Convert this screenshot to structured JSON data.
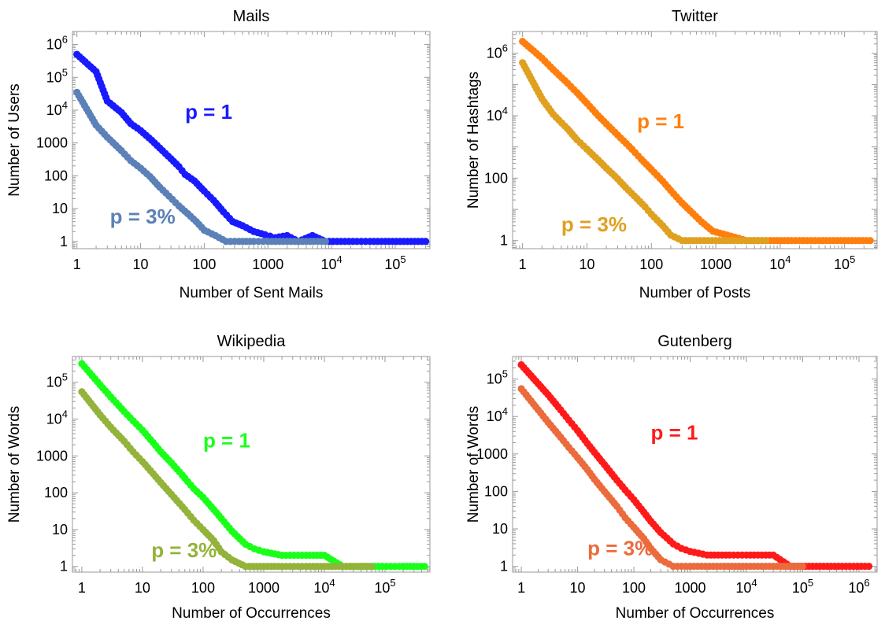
{
  "chart_data": [
    {
      "type": "scatter",
      "title": "Mails",
      "xlabel": "Number of Sent Mails",
      "ylabel": "Number of Users",
      "xscale": "log",
      "yscale": "log",
      "xlim": [
        0.85,
        350000
      ],
      "ylim": [
        0.6,
        2500000
      ],
      "xticks": [
        {
          "v": 1,
          "label": "1"
        },
        {
          "v": 10,
          "label": "10"
        },
        {
          "v": 100,
          "label": "100"
        },
        {
          "v": 1000,
          "label": "1000"
        },
        {
          "v": 10000,
          "m": "10",
          "e": "4"
        },
        {
          "v": 100000,
          "m": "10",
          "e": "5"
        }
      ],
      "yticks": [
        {
          "v": 1,
          "label": "1"
        },
        {
          "v": 10,
          "label": "10"
        },
        {
          "v": 100,
          "label": "100"
        },
        {
          "v": 1000,
          "label": "1000"
        },
        {
          "v": 10000,
          "m": "10",
          "e": "4"
        },
        {
          "v": 100000,
          "m": "10",
          "e": "5"
        },
        {
          "v": 1000000,
          "m": "10",
          "e": "6"
        }
      ],
      "grid": false,
      "series": [
        {
          "name": "p = 1",
          "color": "#1a1aff",
          "points": [
            [
              1,
              500000
            ],
            [
              2,
              150000
            ],
            [
              3,
              19000
            ],
            [
              5,
              8500
            ],
            [
              7,
              3900
            ],
            [
              10,
              2400
            ],
            [
              15,
              1200
            ],
            [
              20,
              700
            ],
            [
              30,
              330
            ],
            [
              40,
              190
            ],
            [
              50,
              110
            ],
            [
              70,
              70
            ],
            [
              100,
              34
            ],
            [
              140,
              18
            ],
            [
              200,
              8
            ],
            [
              280,
              4
            ],
            [
              400,
              3
            ],
            [
              600,
              2
            ],
            [
              900,
              1.6
            ],
            [
              1300,
              1.3
            ],
            [
              2000,
              1.5
            ],
            [
              3000,
              1
            ],
            [
              5000,
              1.5
            ],
            [
              8000,
              1
            ],
            [
              14000,
              1
            ],
            [
              25000,
              1
            ],
            [
              40000,
              1
            ],
            [
              70000,
              1
            ],
            [
              300000,
              1
            ]
          ]
        },
        {
          "name": "p = 3%",
          "color": "#5c81b8",
          "points": [
            [
              1,
              35000
            ],
            [
              2,
              3500
            ],
            [
              3,
              1500
            ],
            [
              5,
              580
            ],
            [
              7,
              290
            ],
            [
              10,
              170
            ],
            [
              14,
              95
            ],
            [
              20,
              45
            ],
            [
              28,
              24
            ],
            [
              40,
              12
            ],
            [
              55,
              7
            ],
            [
              75,
              4
            ],
            [
              100,
              2.2
            ],
            [
              150,
              1.5
            ],
            [
              220,
              1
            ],
            [
              350,
              1
            ],
            [
              600,
              1
            ],
            [
              1000,
              1
            ],
            [
              2000,
              1
            ],
            [
              4000,
              1
            ],
            [
              8000,
              1
            ]
          ]
        }
      ],
      "labels": [
        {
          "text": "p = 1",
          "series": 0,
          "x": 50,
          "y": 5500
        },
        {
          "text": "p = 3%",
          "series": 1,
          "x": 3.3,
          "y": 3.5
        }
      ]
    },
    {
      "type": "scatter",
      "title": "Twitter",
      "xlabel": "Number of Posts",
      "ylabel": "Number of Hashtags",
      "xscale": "log",
      "yscale": "log",
      "xlim": [
        0.7,
        320000
      ],
      "ylim": [
        0.55,
        5000000
      ],
      "xticks": [
        {
          "v": 1,
          "label": "1"
        },
        {
          "v": 10,
          "label": "10"
        },
        {
          "v": 100,
          "label": "100"
        },
        {
          "v": 1000,
          "label": "1000"
        },
        {
          "v": 10000,
          "m": "10",
          "e": "4"
        },
        {
          "v": 100000,
          "m": "10",
          "e": "5"
        }
      ],
      "yticks": [
        {
          "v": 1,
          "label": "1"
        },
        {
          "v": 100,
          "label": "100"
        },
        {
          "v": 10000,
          "m": "10",
          "e": "4"
        },
        {
          "v": 1000000,
          "m": "10",
          "e": "6"
        }
      ],
      "grid": false,
      "series": [
        {
          "name": "p = 1",
          "color": "#ff7f0e",
          "points": [
            [
              1,
              2400000
            ],
            [
              2,
              700000
            ],
            [
              3,
              300000
            ],
            [
              5,
              110000
            ],
            [
              7,
              55000
            ],
            [
              10,
              25000
            ],
            [
              15,
              10000
            ],
            [
              20,
              5500
            ],
            [
              30,
              2400
            ],
            [
              50,
              850
            ],
            [
              70,
              400
            ],
            [
              100,
              190
            ],
            [
              150,
              80
            ],
            [
              200,
              40
            ],
            [
              300,
              16
            ],
            [
              400,
              9
            ],
            [
              600,
              4
            ],
            [
              900,
              2
            ],
            [
              1500,
              1.5
            ],
            [
              3000,
              1
            ],
            [
              7000,
              1
            ],
            [
              15000,
              1
            ],
            [
              40000,
              1
            ],
            [
              100000,
              1
            ],
            [
              250000,
              1
            ]
          ]
        },
        {
          "name": "p = 3%",
          "color": "#e0a020",
          "points": [
            [
              1,
              500000
            ],
            [
              2,
              35000
            ],
            [
              3,
              11000
            ],
            [
              5,
              3800
            ],
            [
              7,
              1700
            ],
            [
              10,
              850
            ],
            [
              15,
              380
            ],
            [
              20,
              210
            ],
            [
              30,
              95
            ],
            [
              40,
              50
            ],
            [
              60,
              22
            ],
            [
              80,
              12
            ],
            [
              100,
              7
            ],
            [
              150,
              3
            ],
            [
              200,
              1.5
            ],
            [
              300,
              1
            ],
            [
              500,
              1
            ],
            [
              1000,
              1
            ],
            [
              2500,
              1
            ],
            [
              6000,
              1
            ]
          ]
        }
      ],
      "labels": [
        {
          "text": "p = 1",
          "series": 0,
          "x": 60,
          "y": 4000
        },
        {
          "text": "p = 3%",
          "series": 1,
          "x": 4,
          "y": 2
        }
      ]
    },
    {
      "type": "scatter",
      "title": "Wikipedia",
      "xlabel": "Number of Occurrences",
      "ylabel": "Number of Words",
      "xscale": "log",
      "yscale": "log",
      "xlim": [
        0.7,
        550000
      ],
      "ylim": [
        0.7,
        500000
      ],
      "xticks": [
        {
          "v": 1,
          "label": "1"
        },
        {
          "v": 10,
          "label": "10"
        },
        {
          "v": 100,
          "label": "100"
        },
        {
          "v": 1000,
          "label": "1000"
        },
        {
          "v": 10000,
          "m": "10",
          "e": "4"
        },
        {
          "v": 100000,
          "m": "10",
          "e": "5"
        }
      ],
      "yticks": [
        {
          "v": 1,
          "label": "1"
        },
        {
          "v": 10,
          "label": "10"
        },
        {
          "v": 100,
          "label": "100"
        },
        {
          "v": 1000,
          "label": "1000"
        },
        {
          "v": 10000,
          "m": "10",
          "e": "4"
        },
        {
          "v": 100000,
          "m": "10",
          "e": "5"
        }
      ],
      "grid": false,
      "series": [
        {
          "name": "p = 1",
          "color": "#1aff1a",
          "points": [
            [
              1,
              320000
            ],
            [
              2,
              85000
            ],
            [
              3,
              40000
            ],
            [
              5,
              16000
            ],
            [
              7,
              9000
            ],
            [
              10,
              5000
            ],
            [
              15,
              2300
            ],
            [
              20,
              1300
            ],
            [
              30,
              650
            ],
            [
              50,
              250
            ],
            [
              70,
              130
            ],
            [
              100,
              75
            ],
            [
              150,
              35
            ],
            [
              200,
              20
            ],
            [
              300,
              9
            ],
            [
              500,
              4
            ],
            [
              700,
              3
            ],
            [
              1000,
              2.5
            ],
            [
              2000,
              2
            ],
            [
              5000,
              2
            ],
            [
              10000,
              2
            ],
            [
              20000,
              1
            ],
            [
              50000,
              1
            ],
            [
              90000,
              1
            ],
            [
              200000,
              1
            ],
            [
              450000,
              1
            ]
          ]
        },
        {
          "name": "p = 3%",
          "color": "#93b33a",
          "points": [
            [
              1,
              55000
            ],
            [
              2,
              13000
            ],
            [
              3,
              6000
            ],
            [
              5,
              2500
            ],
            [
              7,
              1300
            ],
            [
              10,
              700
            ],
            [
              15,
              330
            ],
            [
              20,
              190
            ],
            [
              30,
              90
            ],
            [
              50,
              35
            ],
            [
              70,
              18
            ],
            [
              100,
              10
            ],
            [
              150,
              5
            ],
            [
              200,
              2.5
            ],
            [
              300,
              1.5
            ],
            [
              500,
              1
            ],
            [
              1000,
              1
            ],
            [
              2000,
              1
            ],
            [
              5000,
              1
            ],
            [
              20000,
              1
            ],
            [
              60000,
              1
            ]
          ]
        }
      ],
      "labels": [
        {
          "text": "p = 1",
          "series": 0,
          "x": 100,
          "y": 1700
        },
        {
          "text": "p = 3%",
          "series": 1,
          "x": 14,
          "y": 1.8
        }
      ]
    },
    {
      "type": "scatter",
      "title": "Gutenberg",
      "xlabel": "Number of Occurrences",
      "ylabel": "Number of Words",
      "xscale": "log",
      "yscale": "log",
      "xlim": [
        0.7,
        2100000
      ],
      "ylim": [
        0.7,
        400000
      ],
      "xticks": [
        {
          "v": 1,
          "label": "1"
        },
        {
          "v": 10,
          "label": "10"
        },
        {
          "v": 100,
          "label": "100"
        },
        {
          "v": 1000,
          "label": "1000"
        },
        {
          "v": 10000,
          "m": "10",
          "e": "4"
        },
        {
          "v": 100000,
          "m": "10",
          "e": "5"
        },
        {
          "v": 1000000,
          "m": "10",
          "e": "6"
        }
      ],
      "yticks": [
        {
          "v": 1,
          "label": "1"
        },
        {
          "v": 10,
          "label": "10"
        },
        {
          "v": 100,
          "label": "100"
        },
        {
          "v": 1000,
          "label": "1000"
        },
        {
          "v": 10000,
          "m": "10",
          "e": "4"
        },
        {
          "v": 100000,
          "m": "10",
          "e": "5"
        }
      ],
      "grid": false,
      "series": [
        {
          "name": "p = 1",
          "color": "#ff1a1a",
          "points": [
            [
              1,
              240000
            ],
            [
              2,
              75000
            ],
            [
              3,
              38000
            ],
            [
              5,
              15000
            ],
            [
              7,
              8000
            ],
            [
              10,
              4200
            ],
            [
              15,
              1900
            ],
            [
              20,
              1100
            ],
            [
              30,
              520
            ],
            [
              50,
              200
            ],
            [
              70,
              110
            ],
            [
              100,
              60
            ],
            [
              150,
              28
            ],
            [
              200,
              16
            ],
            [
              300,
              8
            ],
            [
              500,
              4
            ],
            [
              700,
              3
            ],
            [
              1000,
              2.5
            ],
            [
              2000,
              2
            ],
            [
              5000,
              2
            ],
            [
              10000,
              2
            ],
            [
              30000,
              2
            ],
            [
              60000,
              1
            ],
            [
              150000,
              1
            ],
            [
              500000,
              1
            ],
            [
              1500000,
              1
            ]
          ]
        },
        {
          "name": "p = 3%",
          "color": "#eb6b3d",
          "points": [
            [
              1,
              55000
            ],
            [
              2,
              15000
            ],
            [
              3,
              7000
            ],
            [
              5,
              2800
            ],
            [
              7,
              1500
            ],
            [
              10,
              800
            ],
            [
              15,
              380
            ],
            [
              20,
              210
            ],
            [
              30,
              100
            ],
            [
              50,
              40
            ],
            [
              70,
              20
            ],
            [
              100,
              11
            ],
            [
              150,
              5.5
            ],
            [
              200,
              3
            ],
            [
              300,
              1.5
            ],
            [
              500,
              1
            ],
            [
              1000,
              1
            ],
            [
              3000,
              1
            ],
            [
              10000,
              1
            ],
            [
              30000,
              1
            ],
            [
              100000,
              1
            ]
          ]
        }
      ],
      "labels": [
        {
          "text": "p = 1",
          "series": 0,
          "x": 200,
          "y": 2400
        },
        {
          "text": "p = 3%",
          "series": 1,
          "x": 15,
          "y": 2
        }
      ]
    }
  ]
}
